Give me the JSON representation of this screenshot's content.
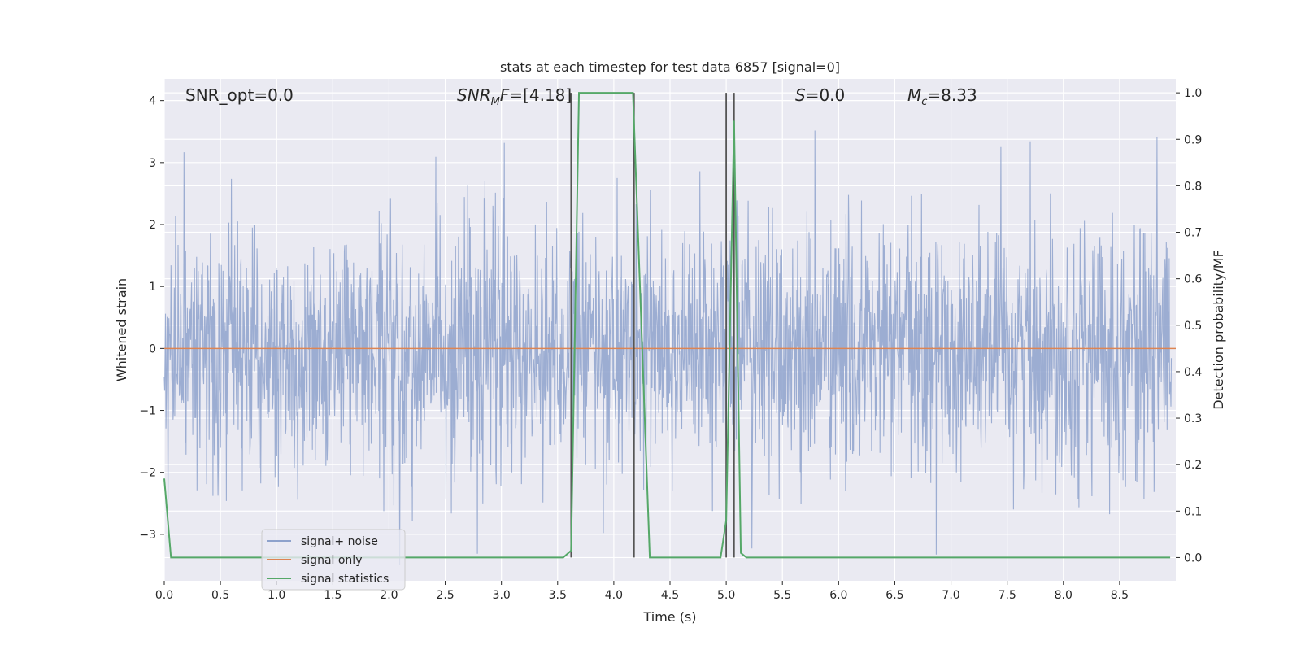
{
  "chart_data": {
    "type": "line",
    "title": "stats at each timestep for test data 6857 [signal=0]",
    "xlabel": "Time (s)",
    "ylabel_left": "Whitened strain",
    "ylabel_right": "Detection probability/MF",
    "xlim": [
      0.0,
      9.0
    ],
    "ylim_left": [
      -3.75,
      4.35
    ],
    "ylim_right": [
      -0.05,
      1.03
    ],
    "xticks": [
      "0.0",
      "0.5",
      "1.0",
      "1.5",
      "2.0",
      "2.5",
      "3.0",
      "3.5",
      "4.0",
      "4.5",
      "5.0",
      "5.5",
      "6.0",
      "6.5",
      "7.0",
      "7.5",
      "8.0",
      "8.5"
    ],
    "yticks_left": [
      "4",
      "3",
      "2",
      "1",
      "0",
      "−1",
      "−2",
      "−3"
    ],
    "yticks_right": [
      "1.0",
      "0.9",
      "0.8",
      "0.7",
      "0.6",
      "0.5",
      "0.4",
      "0.3",
      "0.2",
      "0.1",
      "0.0"
    ],
    "annotations": {
      "snr_opt": "SNR_opt=0.0",
      "snr_mf_label": "SNR",
      "snr_mf_sub": "M",
      "snr_mf_f": "F",
      "snr_mf_val": "=[4.18]",
      "s_label": "S",
      "s_val": "=0.0",
      "mc_label": "M",
      "mc_sub": "c",
      "mc_val": "=8.33"
    },
    "legend": {
      "placement": "lower-left",
      "entries": [
        "signal+ noise",
        "signal only",
        "signal statistics"
      ]
    },
    "colors": {
      "noise": "#8ea2cc",
      "signal": "#dd8452",
      "statistics": "#55a868",
      "vlines": "#555555",
      "background": "#eaeaf2",
      "grid": "#ffffff"
    },
    "series": [
      {
        "name": "signal+ noise",
        "description_values": "dense noise, approx. N(0,1) with peaks from -3.5 to 4.0",
        "peak_max": 4.0,
        "peak_min": -3.5
      },
      {
        "name": "signal only",
        "x": [
          0.0,
          9.0
        ],
        "y": [
          0.0,
          0.0
        ]
      },
      {
        "name": "signal statistics",
        "x": [
          0.0,
          0.06,
          0.12,
          3.55,
          3.62,
          3.69,
          4.17,
          4.32,
          4.37,
          4.95,
          5.0,
          5.07,
          5.13,
          5.18,
          8.95
        ],
        "y": [
          0.17,
          0.0,
          0.0,
          0.0,
          0.015,
          1.0,
          1.0,
          0.0,
          0.0,
          0.0,
          0.08,
          0.94,
          0.01,
          0.0,
          0.0
        ]
      }
    ],
    "vertical_lines_x": [
      3.62,
      4.18,
      5.0,
      5.07
    ]
  }
}
